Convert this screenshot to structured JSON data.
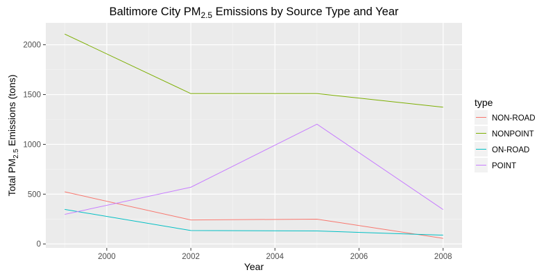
{
  "chart_data": {
    "type": "line",
    "title": {
      "prefix": "Baltimore City PM",
      "subscript": "2.5",
      "suffix": " Emissions by Source Type and Year"
    },
    "xlabel": "Year",
    "ylabel": {
      "prefix": "Total PM",
      "subscript": "2.5",
      "suffix": " Emissions (tons)"
    },
    "xlim": [
      1998.55,
      2008.45
    ],
    "ylim": [
      -40,
      2220
    ],
    "x_ticks": [
      2000,
      2002,
      2004,
      2006,
      2008
    ],
    "x_tick_labels": [
      "2000",
      "2002",
      "2004",
      "2006",
      "2008"
    ],
    "y_ticks": [
      0,
      500,
      1000,
      1500,
      2000
    ],
    "y_tick_labels": [
      "0",
      "500",
      "1000",
      "1500",
      "2000"
    ],
    "grid": true,
    "legend": {
      "title": "type",
      "position": "right"
    },
    "x": [
      1999,
      2002,
      2005,
      2008
    ],
    "series": [
      {
        "name": "NON-ROAD",
        "color": "#F8766D",
        "values": [
          522.9,
          240.8,
          248.9,
          55.8
        ]
      },
      {
        "name": "NONPOINT",
        "color": "#7CAE00",
        "values": [
          2107.6,
          1509.5,
          1509.5,
          1373.2
        ]
      },
      {
        "name": "ON-ROAD",
        "color": "#00BFC4",
        "values": [
          346.8,
          134.3,
          130.4,
          88.3
        ]
      },
      {
        "name": "POINT",
        "color": "#C77CFF",
        "values": [
          296.8,
          569.3,
          1202.5,
          345.0
        ]
      }
    ]
  }
}
